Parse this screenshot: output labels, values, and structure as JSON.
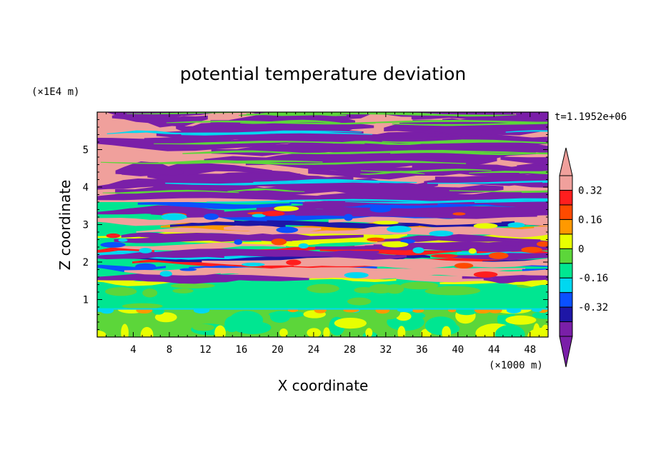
{
  "chart_data": {
    "type": "heatmap",
    "title": "potential temperature deviation",
    "xlabel": "X coordinate",
    "ylabel": "Z coordinate",
    "x_unit": "(×1000 m)",
    "y_unit": "(×1E4 m)",
    "time_label": "t=1.1952e+06",
    "xlim": [
      0,
      50
    ],
    "ylim": [
      0,
      6
    ],
    "x_ticks": [
      4,
      8,
      12,
      16,
      20,
      24,
      28,
      32,
      36,
      40,
      44,
      48
    ],
    "x_tick_labels": [
      "4",
      "8",
      "12",
      "16",
      "20",
      "24",
      "28",
      "32",
      "36",
      "40",
      "44",
      "48"
    ],
    "y_ticks": [
      1,
      2,
      3,
      4,
      5
    ],
    "y_tick_labels": [
      "1",
      "2",
      "3",
      "4",
      "5"
    ],
    "colorbar": {
      "levels": [
        -0.48,
        -0.4,
        -0.32,
        -0.24,
        -0.16,
        -0.08,
        0,
        0.08,
        0.16,
        0.24,
        0.32,
        0.4
      ],
      "tick_values": [
        -0.32,
        -0.16,
        0,
        0.16,
        0.32
      ],
      "tick_labels": [
        "-0.32",
        "-0.16",
        "0",
        "0.16",
        "0.32"
      ],
      "colors": [
        "#7a1fa8",
        "#1e16a6",
        "#0a50ff",
        "#00d8f0",
        "#00e691",
        "#5cd63a",
        "#e8ff00",
        "#ff9900",
        "#ff4a00",
        "#ff1e1e",
        "#f0a09c"
      ],
      "extend": "both"
    }
  }
}
